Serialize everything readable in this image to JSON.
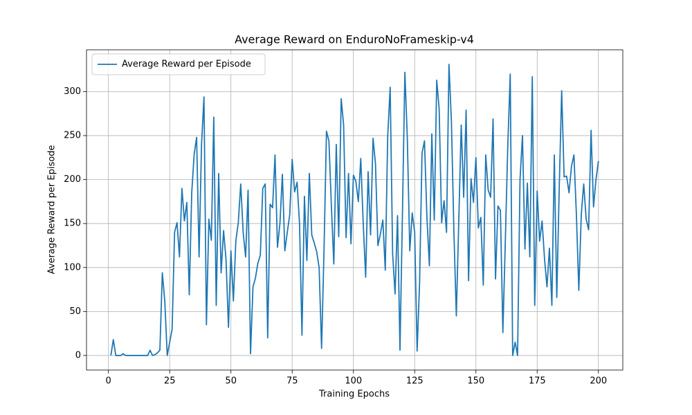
{
  "chart_data": {
    "type": "line",
    "title": "Average Reward on EnduroNoFrameskip-v4",
    "xlabel": "Training Epochs",
    "ylabel": "Average Reward per Episode",
    "x": [
      1,
      2,
      3,
      4,
      5,
      6,
      7,
      8,
      9,
      10,
      11,
      12,
      13,
      14,
      15,
      16,
      17,
      18,
      19,
      20,
      21,
      22,
      23,
      24,
      25,
      26,
      27,
      28,
      29,
      30,
      31,
      32,
      33,
      34,
      35,
      36,
      37,
      38,
      39,
      40,
      41,
      42,
      43,
      44,
      45,
      46,
      47,
      48,
      49,
      50,
      51,
      52,
      53,
      54,
      55,
      56,
      57,
      58,
      59,
      60,
      61,
      62,
      63,
      64,
      65,
      66,
      67,
      68,
      69,
      70,
      71,
      72,
      73,
      74,
      75,
      76,
      77,
      78,
      79,
      80,
      81,
      82,
      83,
      84,
      85,
      86,
      87,
      88,
      89,
      90,
      91,
      92,
      93,
      94,
      95,
      96,
      97,
      98,
      99,
      100,
      101,
      102,
      103,
      104,
      105,
      106,
      107,
      108,
      109,
      110,
      111,
      112,
      113,
      114,
      115,
      116,
      117,
      118,
      119,
      120,
      121,
      122,
      123,
      124,
      125,
      126,
      127,
      128,
      129,
      130,
      131,
      132,
      133,
      134,
      135,
      136,
      137,
      138,
      139,
      140,
      141,
      142,
      143,
      144,
      145,
      146,
      147,
      148,
      149,
      150,
      151,
      152,
      153,
      154,
      155,
      156,
      157,
      158,
      159,
      160,
      161,
      162,
      163,
      164,
      165,
      166,
      167,
      168,
      169,
      170,
      171,
      172,
      173,
      174,
      175,
      176,
      177,
      178,
      179,
      180,
      181,
      182,
      183,
      184,
      185,
      186,
      187,
      188,
      189,
      190,
      191,
      192,
      193,
      194,
      195,
      196,
      197,
      198,
      199,
      200
    ],
    "series": [
      {
        "name": "Average Reward per Episode",
        "color": "#1f77b4",
        "values": [
          0,
          18,
          0,
          0,
          0,
          2,
          0,
          0,
          0,
          0,
          0,
          0,
          0,
          0,
          0,
          0,
          6,
          0,
          1,
          3,
          6,
          94,
          62,
          0,
          15,
          30,
          140,
          151,
          112,
          190,
          153,
          174,
          69,
          185,
          229,
          248,
          112,
          240,
          294,
          35,
          155,
          131,
          271,
          57,
          207,
          94,
          142,
          109,
          32,
          119,
          62,
          130,
          151,
          195,
          140,
          112,
          188,
          2,
          78,
          88,
          105,
          114,
          190,
          195,
          20,
          172,
          168,
          228,
          123,
          150,
          206,
          119,
          140,
          160,
          223,
          186,
          197,
          150,
          23,
          181,
          108,
          207,
          137,
          128,
          118,
          100,
          8,
          120,
          255,
          244,
          170,
          104,
          240,
          135,
          292,
          262,
          134,
          207,
          127,
          205,
          198,
          175,
          224,
          150,
          89,
          209,
          137,
          247,
          218,
          125,
          138,
          154,
          97,
          250,
          305,
          116,
          70,
          159,
          6,
          160,
          322,
          247,
          119,
          162,
          140,
          5,
          82,
          230,
          244,
          157,
          102,
          252,
          154,
          313,
          280,
          151,
          176,
          140,
          331,
          266,
          142,
          45,
          153,
          262,
          180,
          279,
          85,
          201,
          174,
          225,
          145,
          157,
          80,
          228,
          188,
          180,
          269,
          87,
          170,
          165,
          26,
          130,
          238,
          320,
          0,
          15,
          0,
          200,
          250,
          121,
          196,
          112,
          317,
          57,
          187,
          130,
          153,
          110,
          78,
          122,
          57,
          228,
          66,
          190,
          301,
          203,
          204,
          185,
          215,
          228,
          161,
          74,
          160,
          195,
          155,
          143,
          256,
          169,
          200,
          221
        ]
      }
    ],
    "xlim": [
      -8.95,
      209.95
    ],
    "ylim": [
      -16.55,
      347.55
    ],
    "xticks": [
      0,
      25,
      50,
      75,
      100,
      125,
      150,
      175,
      200
    ],
    "yticks": [
      0,
      50,
      100,
      150,
      200,
      250,
      300
    ],
    "grid": true,
    "legend": "upper left"
  }
}
